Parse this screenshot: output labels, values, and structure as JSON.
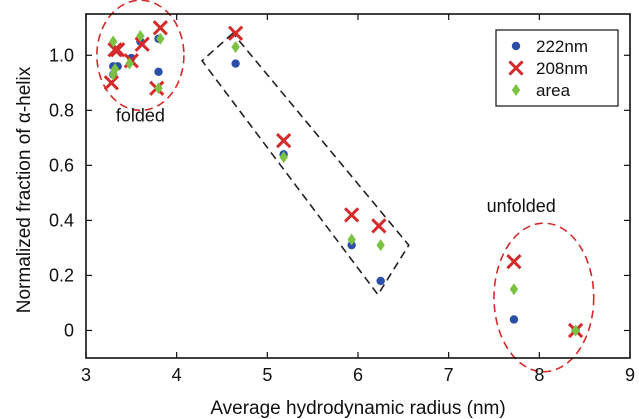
{
  "chart_data": {
    "type": "scatter",
    "xlabel": "Average hydrodynamic radius (nm)",
    "ylabel": "Normalized fraction of α-helix",
    "xlim": [
      3,
      9
    ],
    "ylim": [
      -0.1,
      1.15
    ],
    "xticks": [
      3,
      4,
      5,
      6,
      7,
      8,
      9
    ],
    "yticks": [
      0,
      0.2,
      0.4,
      0.6,
      0.8,
      1.0
    ],
    "ytick_labels": [
      "0",
      "0.2",
      "0.4",
      "0.6",
      "0.8",
      "1.0"
    ],
    "grid": false,
    "legend_position": "top-right",
    "colors": {
      "222nm": "#2b4fa8",
      "208nm": "#d42a2a",
      "area": "#7cc242"
    },
    "series": [
      {
        "name": "222nm",
        "marker": "circle",
        "points": [
          [
            3.3,
            0.96
          ],
          [
            3.35,
            0.96
          ],
          [
            3.5,
            0.99
          ],
          [
            3.6,
            1.05
          ],
          [
            3.8,
            1.06
          ],
          [
            3.8,
            0.94
          ],
          [
            3.3,
            0.93
          ],
          [
            4.65,
            0.97
          ],
          [
            5.18,
            0.64
          ],
          [
            5.93,
            0.31
          ],
          [
            6.25,
            0.18
          ],
          [
            7.72,
            0.04
          ],
          [
            8.4,
            0.0
          ]
        ]
      },
      {
        "name": "208nm",
        "marker": "x",
        "points": [
          [
            3.28,
            0.9
          ],
          [
            3.32,
            1.02
          ],
          [
            3.35,
            1.02
          ],
          [
            3.5,
            0.98
          ],
          [
            3.62,
            1.04
          ],
          [
            3.78,
            0.88
          ],
          [
            3.82,
            1.1
          ],
          [
            4.65,
            1.08
          ],
          [
            5.18,
            0.69
          ],
          [
            5.93,
            0.42
          ],
          [
            6.23,
            0.38
          ],
          [
            7.72,
            0.25
          ],
          [
            8.4,
            0.0
          ]
        ]
      },
      {
        "name": "area",
        "marker": "diamond",
        "points": [
          [
            3.3,
            1.05
          ],
          [
            3.32,
            0.95
          ],
          [
            3.3,
            0.93
          ],
          [
            3.48,
            0.97
          ],
          [
            3.6,
            1.07
          ],
          [
            3.8,
            0.88
          ],
          [
            3.82,
            1.06
          ],
          [
            4.65,
            1.03
          ],
          [
            5.18,
            0.63
          ],
          [
            5.93,
            0.33
          ],
          [
            6.25,
            0.31
          ],
          [
            7.72,
            0.15
          ],
          [
            8.4,
            0.0
          ]
        ]
      }
    ],
    "annotations": [
      {
        "label": "folded",
        "x": 3.6,
        "y": 0.76
      },
      {
        "label": "unfolded",
        "x": 7.8,
        "y": 0.43
      }
    ],
    "regions": [
      {
        "shape": "circle",
        "color": "#d42a2a",
        "center": [
          3.6,
          1.0
        ],
        "rx_data": 0.48,
        "ry_data": 0.2
      },
      {
        "shape": "circle",
        "color": "#d42a2a",
        "center": [
          8.05,
          0.12
        ],
        "rx_data": 0.55,
        "ry_data": 0.27
      },
      {
        "shape": "box",
        "color": "#222222",
        "corners": [
          [
            4.62,
            1.08
          ],
          [
            4.28,
            0.98
          ],
          [
            6.22,
            0.13
          ],
          [
            6.56,
            0.31
          ]
        ]
      }
    ]
  }
}
